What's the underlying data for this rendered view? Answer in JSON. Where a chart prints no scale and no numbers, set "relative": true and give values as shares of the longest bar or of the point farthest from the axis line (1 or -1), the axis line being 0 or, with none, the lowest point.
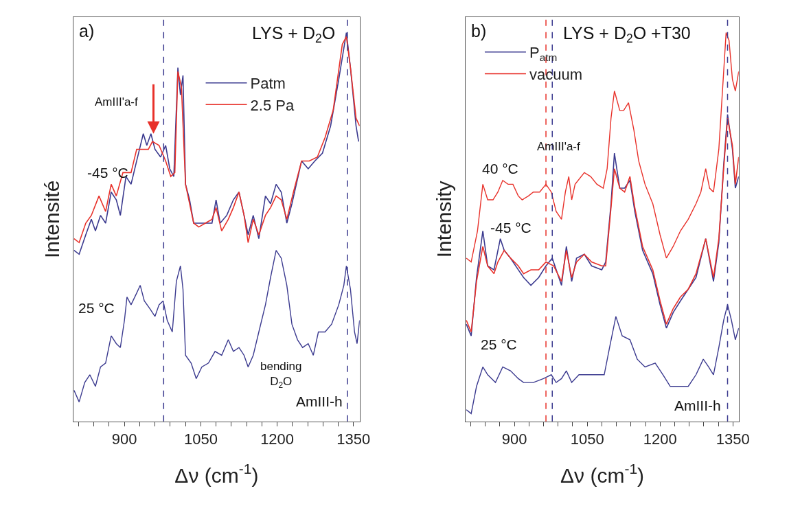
{
  "chart_data": [
    {
      "type": "line",
      "relative": true,
      "title": "LYS + D$_{2}$O",
      "xlabel": "Δν (cm$^{-1}$)",
      "ylabel": "Intensité",
      "xlim": [
        800,
        1362
      ],
      "xticks": [
        {
          "value": 810,
          "label": null
        },
        {
          "value": 840,
          "label": null
        },
        {
          "value": 870,
          "label": null
        },
        900,
        {
          "value": 930,
          "label": null
        },
        {
          "value": 960,
          "label": null
        },
        {
          "value": 990,
          "label": null
        },
        {
          "value": 1020,
          "label": null
        },
        1050,
        {
          "value": 1080,
          "label": null
        },
        {
          "value": 1110,
          "label": null
        },
        {
          "value": 1140,
          "label": null
        },
        {
          "value": 1170,
          "label": null
        },
        1200,
        {
          "value": 1230,
          "label": null
        },
        {
          "value": 1260,
          "label": null
        },
        {
          "value": 1290,
          "label": null
        },
        {
          "value": 1320,
          "label": null
        },
        1350
      ],
      "legend": "top right",
      "marker": "none",
      "line_style": "solid",
      "series": [
        {
          "name": "Patm",
          "color": "#3b3a8f",
          "x": [
            801,
            811,
            824,
            835,
            843,
            853,
            863,
            874,
            884,
            892,
            903,
            913,
            924,
            937,
            944,
            952,
            960,
            971,
            981,
            989,
            997,
            1005,
            1010,
            1015,
            1020,
            1028,
            1036,
            1046,
            1059,
            1072,
            1080,
            1088,
            1101,
            1114,
            1125,
            1135,
            1143,
            1153,
            1164,
            1177,
            1187,
            1198,
            1208,
            1219,
            1229,
            1248,
            1261,
            1274,
            1289,
            1305,
            1321,
            1336,
            1344,
            1355,
            1360
          ],
          "values": [
            0.44,
            0.43,
            0.48,
            0.52,
            0.49,
            0.53,
            0.51,
            0.59,
            0.57,
            0.53,
            0.63,
            0.61,
            0.67,
            0.74,
            0.71,
            0.74,
            0.7,
            0.68,
            0.71,
            0.65,
            0.63,
            0.91,
            0.84,
            0.89,
            0.61,
            0.57,
            0.51,
            0.51,
            0.51,
            0.51,
            0.57,
            0.51,
            0.53,
            0.57,
            0.59,
            0.53,
            0.48,
            0.53,
            0.47,
            0.58,
            0.56,
            0.61,
            0.59,
            0.51,
            0.56,
            0.67,
            0.65,
            0.67,
            0.69,
            0.76,
            0.88,
            1.0,
            0.91,
            0.76,
            0.72
          ]
        },
        {
          "name": "2.5 Pa",
          "color": "#e8312a",
          "x": [
            801,
            811,
            824,
            835,
            850,
            863,
            874,
            884,
            897,
            913,
            924,
            937,
            947,
            955,
            968,
            981,
            991,
            999,
            1005,
            1012,
            1020,
            1028,
            1036,
            1046,
            1059,
            1072,
            1080,
            1091,
            1104,
            1114,
            1125,
            1135,
            1143,
            1153,
            1164,
            1177,
            1187,
            1198,
            1208,
            1219,
            1232,
            1248,
            1263,
            1279,
            1294,
            1310,
            1328,
            1336,
            1344,
            1355,
            1362
          ],
          "values": [
            0.47,
            0.46,
            0.51,
            0.53,
            0.58,
            0.54,
            0.61,
            0.58,
            0.64,
            0.64,
            0.7,
            0.7,
            0.7,
            0.72,
            0.71,
            0.67,
            0.63,
            0.64,
            0.9,
            0.86,
            0.61,
            0.56,
            0.51,
            0.5,
            0.51,
            0.52,
            0.55,
            0.49,
            0.52,
            0.55,
            0.59,
            0.53,
            0.46,
            0.52,
            0.48,
            0.53,
            0.55,
            0.58,
            0.57,
            0.52,
            0.59,
            0.67,
            0.67,
            0.68,
            0.73,
            0.8,
            0.97,
            0.99,
            0.91,
            0.78,
            0.76
          ]
        },
        {
          "color": "#3b3a8f",
          "x": [
            801,
            811,
            822,
            832,
            843,
            853,
            863,
            874,
            884,
            892,
            900,
            905,
            913,
            924,
            931,
            939,
            950,
            960,
            968,
            976,
            984,
            994,
            1002,
            1010,
            1015,
            1020,
            1031,
            1041,
            1052,
            1065,
            1078,
            1091,
            1104,
            1114,
            1125,
            1135,
            1143,
            1153,
            1164,
            1177,
            1187,
            1198,
            1208,
            1219,
            1229,
            1240,
            1250,
            1261,
            1271,
            1281,
            1294,
            1307,
            1321,
            1331,
            1336,
            1344,
            1352,
            1357,
            1362
          ],
          "values": [
            0.08,
            0.05,
            0.1,
            0.12,
            0.09,
            0.14,
            0.15,
            0.22,
            0.2,
            0.19,
            0.26,
            0.32,
            0.3,
            0.33,
            0.35,
            0.31,
            0.29,
            0.27,
            0.3,
            0.31,
            0.26,
            0.23,
            0.36,
            0.4,
            0.34,
            0.17,
            0.15,
            0.11,
            0.14,
            0.15,
            0.18,
            0.17,
            0.21,
            0.18,
            0.19,
            0.17,
            0.14,
            0.17,
            0.23,
            0.3,
            0.37,
            0.44,
            0.42,
            0.35,
            0.25,
            0.21,
            0.19,
            0.2,
            0.17,
            0.23,
            0.23,
            0.25,
            0.3,
            0.35,
            0.4,
            0.34,
            0.23,
            0.2,
            0.26
          ]
        }
      ],
      "ref_lines": [
        {
          "axis": "x",
          "value": 977,
          "color": "#3b3a8f",
          "line_style": "dashed"
        },
        {
          "axis": "x",
          "value": 1338,
          "color": "#3b3a8f",
          "line_style": "dashed"
        }
      ],
      "annotations": [
        "a)",
        "AmIII'a-f",
        "-45 °C",
        "25 °C",
        "bending\nD$_{2}$O",
        "AmIII-h"
      ]
    },
    {
      "type": "line",
      "relative": true,
      "title": "LYS + D$_{2}$O +T30",
      "xlabel": "Δν (cm$^{-1}$)",
      "ylabel": "Intensity",
      "xlim": [
        800,
        1362
      ],
      "xticks": [
        {
          "value": 810,
          "label": null
        },
        {
          "value": 840,
          "label": null
        },
        {
          "value": 870,
          "label": null
        },
        900,
        {
          "value": 930,
          "label": null
        },
        {
          "value": 960,
          "label": null
        },
        {
          "value": 990,
          "label": null
        },
        {
          "value": 1020,
          "label": null
        },
        1050,
        {
          "value": 1080,
          "label": null
        },
        {
          "value": 1110,
          "label": null
        },
        {
          "value": 1140,
          "label": null
        },
        {
          "value": 1170,
          "label": null
        },
        1200,
        {
          "value": 1230,
          "label": null
        },
        {
          "value": 1260,
          "label": null
        },
        {
          "value": 1290,
          "label": null
        },
        {
          "value": 1320,
          "label": null
        },
        1350
      ],
      "legend": "top left",
      "marker": "none",
      "line_style": "solid",
      "series": [
        {
          "name": "P$_{atm}$",
          "color": "#3b3a8f",
          "x": [
            801,
            811,
            822,
            835,
            845,
            858,
            871,
            879,
            892,
            908,
            919,
            934,
            950,
            965,
            978,
            997,
            1007,
            1018,
            1028,
            1044,
            1059,
            1080,
            1088,
            1099,
            1106,
            1117,
            1127,
            1138,
            1148,
            1164,
            1185,
            1200,
            1213,
            1227,
            1242,
            1258,
            1274,
            1294,
            1310,
            1321,
            1331,
            1339,
            1349,
            1355,
            1362
          ],
          "values": [
            0.25,
            0.22,
            0.37,
            0.49,
            0.4,
            0.39,
            0.47,
            0.44,
            0.42,
            0.39,
            0.37,
            0.35,
            0.37,
            0.4,
            0.42,
            0.35,
            0.45,
            0.36,
            0.42,
            0.43,
            0.4,
            0.39,
            0.41,
            0.56,
            0.69,
            0.6,
            0.6,
            0.62,
            0.54,
            0.44,
            0.38,
            0.3,
            0.24,
            0.28,
            0.31,
            0.34,
            0.37,
            0.47,
            0.36,
            0.46,
            0.66,
            0.79,
            0.7,
            0.6,
            0.63
          ]
        },
        {
          "name": "vacuum",
          "color": "#e8312a",
          "x": [
            801,
            811,
            822,
            835,
            845,
            858,
            866,
            879,
            892,
            908,
            919,
            934,
            950,
            965,
            981,
            997,
            1007,
            1018,
            1028,
            1044,
            1059,
            1080,
            1088,
            1099,
            1106,
            1117,
            1127,
            1138,
            1148,
            1164,
            1185,
            1200,
            1213,
            1227,
            1242,
            1258,
            1274,
            1294,
            1310,
            1321,
            1331,
            1339,
            1349,
            1355,
            1362
          ],
          "values": [
            0.26,
            0.23,
            0.36,
            0.45,
            0.4,
            0.38,
            0.41,
            0.44,
            0.42,
            0.4,
            0.38,
            0.39,
            0.39,
            0.41,
            0.4,
            0.36,
            0.44,
            0.37,
            0.41,
            0.43,
            0.41,
            0.4,
            0.4,
            0.55,
            0.65,
            0.6,
            0.59,
            0.63,
            0.55,
            0.45,
            0.39,
            0.31,
            0.25,
            0.29,
            0.32,
            0.34,
            0.38,
            0.47,
            0.37,
            0.47,
            0.65,
            0.78,
            0.71,
            0.61,
            0.68
          ]
        },
        {
          "color": "#e8312a",
          "x": [
            801,
            811,
            824,
            835,
            845,
            856,
            866,
            876,
            887,
            897,
            908,
            916,
            929,
            939,
            952,
            965,
            976,
            986,
            997,
            1005,
            1012,
            1018,
            1025,
            1044,
            1057,
            1070,
            1083,
            1091,
            1099,
            1106,
            1117,
            1125,
            1135,
            1146,
            1156,
            1169,
            1185,
            1200,
            1213,
            1227,
            1242,
            1258,
            1274,
            1284,
            1294,
            1302,
            1310,
            1321,
            1331,
            1336,
            1342,
            1349,
            1355,
            1362
          ],
          "values": [
            0.42,
            0.41,
            0.49,
            0.61,
            0.57,
            0.57,
            0.59,
            0.62,
            0.61,
            0.61,
            0.58,
            0.57,
            0.58,
            0.59,
            0.59,
            0.61,
            0.59,
            0.54,
            0.52,
            0.59,
            0.63,
            0.57,
            0.61,
            0.64,
            0.63,
            0.61,
            0.6,
            0.65,
            0.78,
            0.85,
            0.8,
            0.8,
            0.82,
            0.75,
            0.67,
            0.61,
            0.56,
            0.48,
            0.42,
            0.45,
            0.49,
            0.52,
            0.56,
            0.59,
            0.65,
            0.6,
            0.59,
            0.7,
            0.9,
            1.0,
            0.98,
            0.88,
            0.85,
            0.9
          ]
        },
        {
          "color": "#3b3a8f",
          "x": [
            801,
            811,
            822,
            835,
            845,
            861,
            876,
            892,
            908,
            919,
            939,
            960,
            976,
            986,
            997,
            1007,
            1018,
            1033,
            1059,
            1085,
            1096,
            1109,
            1122,
            1138,
            1153,
            1169,
            1190,
            1206,
            1221,
            1242,
            1258,
            1274,
            1289,
            1300,
            1310,
            1321,
            1331,
            1339,
            1347,
            1355,
            1362
          ],
          "values": [
            0.03,
            0.02,
            0.09,
            0.14,
            0.12,
            0.1,
            0.14,
            0.13,
            0.11,
            0.1,
            0.1,
            0.11,
            0.12,
            0.1,
            0.11,
            0.13,
            0.1,
            0.12,
            0.12,
            0.12,
            0.19,
            0.27,
            0.22,
            0.21,
            0.16,
            0.14,
            0.15,
            0.12,
            0.09,
            0.09,
            0.09,
            0.12,
            0.16,
            0.14,
            0.12,
            0.19,
            0.26,
            0.3,
            0.26,
            0.21,
            0.24
          ]
        }
      ],
      "ref_lines": [
        {
          "axis": "x",
          "value": 965,
          "color": "#e8312a",
          "line_style": "dashed"
        },
        {
          "axis": "x",
          "value": 978,
          "color": "#3b3a8f",
          "line_style": "dashed"
        },
        {
          "axis": "x",
          "value": 1339,
          "color": "#3b3a8f",
          "line_style": "dashed"
        }
      ],
      "annotations": [
        "b)",
        "AmIII'a-f",
        "40 °C",
        "-45 °C",
        "25 °C",
        "AmIII-h"
      ]
    }
  ]
}
